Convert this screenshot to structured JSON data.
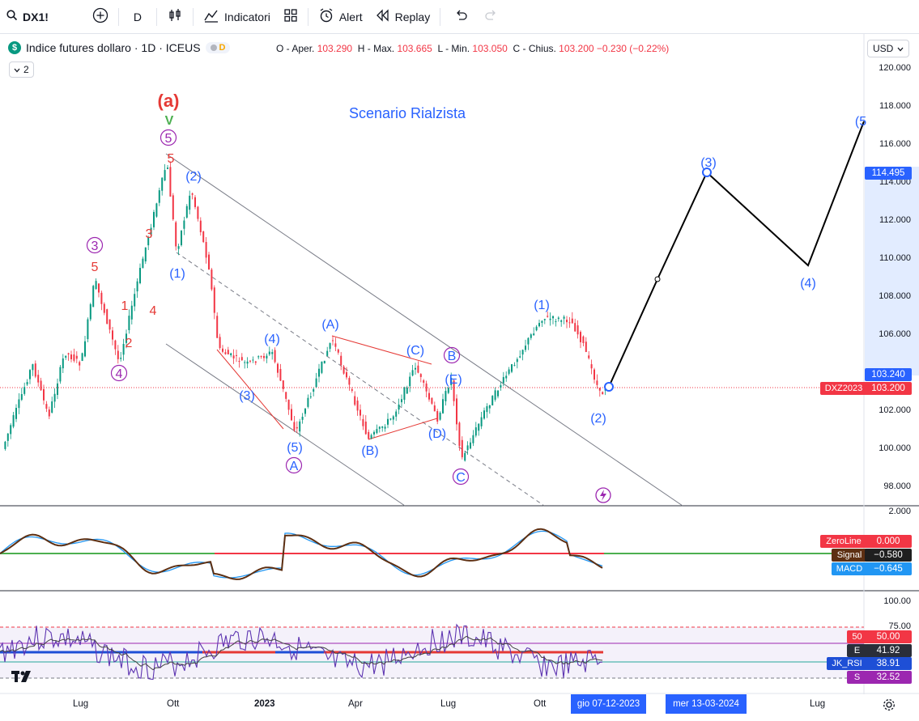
{
  "toolbar": {
    "symbol": "DX1!",
    "interval": "D",
    "indicators_label": "Indicatori",
    "alert_label": "Alert",
    "replay_label": "Replay"
  },
  "legend": {
    "title": "Indice futures dollaro · 1D · ICEUS",
    "logo_letter": "$",
    "badge": "D",
    "open_label": "O - Aper.",
    "open": "103.290",
    "high_label": "H - Max.",
    "high": "103.665",
    "low_label": "L - Min.",
    "low": "103.050",
    "close_label": "C - Chius.",
    "close": "103.200",
    "change": "−0.230 (−0.22%)",
    "collapsed_count": "2"
  },
  "currency": "USD",
  "scenario_title": "Scenario Rialzista",
  "price_axis": [
    "120.000",
    "118.000",
    "116.000",
    "114.000",
    "112.000",
    "110.000",
    "108.000",
    "106.000",
    "104.000",
    "102.000",
    "100.000",
    "98.000"
  ],
  "price_tags": {
    "p114": "114.495",
    "p103_24": "103.240",
    "p103_20": "103.200",
    "dxz_label": "DXZ2023"
  },
  "macd": {
    "axis_top": "2.000",
    "zeroline_label": "ZeroLine",
    "zeroline_value": "0.000",
    "signal_label": "Signal",
    "signal_value": "−0.580",
    "macd_label": "MACD",
    "macd_value": "−0.645"
  },
  "rsi": {
    "axis_100": "100.00",
    "axis_75": "75.00",
    "tag50_label": "50",
    "tag50_value": "50.00",
    "e_label": "E",
    "e_value": "41.92",
    "jk_label": "JK_RSI",
    "jk_value": "38.91",
    "s_label": "S",
    "s_value": "32.52"
  },
  "time_axis": {
    "lug1": "Lug",
    "ott1": "Ott",
    "y2023": "2023",
    "apr": "Apr",
    "lug2": "Lug",
    "ott2": "Ott",
    "tag1": "gio 07-12-2023",
    "tag2": "mer 13-03-2024",
    "lug3": "Lug"
  },
  "wave_labels": {
    "a_big": "(a)",
    "v": "V",
    "c5": "5",
    "r5": "5",
    "b2": "(2)",
    "c3": "3",
    "r5b": "5",
    "r3": "3",
    "r1": "1",
    "r4": "4",
    "r2": "2",
    "c4": "4",
    "b1": "(1)",
    "b4": "(4)",
    "bA": "(A)",
    "bC": "(C)",
    "cB": "B",
    "bE": "(E)",
    "b3": "(3)",
    "b5": "(5)",
    "cA": "A",
    "bB": "(B)",
    "bD": "(D)",
    "cC": "C",
    "b1r": "(1)",
    "b2r": "(2)",
    "p3": "(3)",
    "p4": "(4)",
    "p5": "(5"
  },
  "colors": {
    "up": "#089981",
    "down": "#f23645",
    "wave_blue": "#2962ff",
    "wave_red": "#e53935",
    "purple": "#9c27b0",
    "macd_blue": "#2196f3",
    "signal_brown": "#5d2f12",
    "rsi_purple": "#7e57c2"
  }
}
